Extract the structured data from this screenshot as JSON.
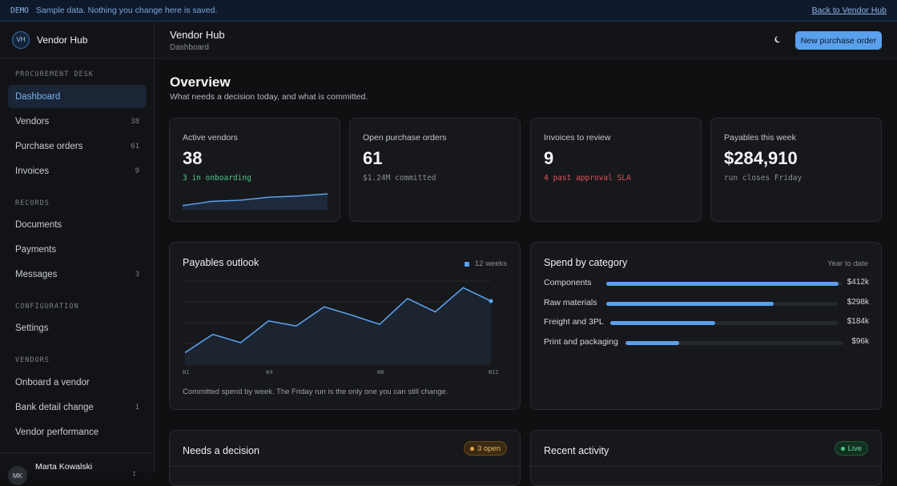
{
  "banner": {
    "tag": "DEMO",
    "message": "Sample data. Nothing you change here is saved.",
    "back_link": "Back to Vendor Hub"
  },
  "brand": {
    "initials": "VH",
    "name": "Vendor Hub"
  },
  "sidebar": {
    "sections": [
      {
        "label": "PROCUREMENT DESK",
        "items": [
          {
            "label": "Dashboard",
            "count": "",
            "active": true
          },
          {
            "label": "Vendors",
            "count": "38"
          },
          {
            "label": "Purchase orders",
            "count": "61"
          },
          {
            "label": "Invoices",
            "count": "9"
          }
        ]
      },
      {
        "label": "RECORDS",
        "items": [
          {
            "label": "Documents",
            "count": ""
          },
          {
            "label": "Payments",
            "count": ""
          },
          {
            "label": "Messages",
            "count": "3"
          }
        ]
      },
      {
        "label": "CONFIGURATION",
        "items": [
          {
            "label": "Settings",
            "count": ""
          }
        ]
      },
      {
        "label": "VENDORS",
        "items": [
          {
            "label": "Onboard a vendor",
            "count": ""
          },
          {
            "label": "Bank detail change",
            "count": "1"
          },
          {
            "label": "Vendor performance",
            "count": ""
          }
        ]
      }
    ],
    "user": {
      "initials": "MK",
      "name": "Marta Kowalski"
    }
  },
  "header": {
    "title": "Vendor Hub",
    "subtitle": "Dashboard",
    "theme_icon": "moon-icon",
    "primary_action": "New purchase order"
  },
  "overview": {
    "title": "Overview",
    "subtitle": "What needs a decision today, and what is committed."
  },
  "stats": [
    {
      "label": "Active vendors",
      "value": "38",
      "note": "3 in onboarding",
      "note_color": "#4fc98a",
      "sparkline": [
        1,
        2,
        2.3,
        3,
        3.3,
        3.8
      ]
    },
    {
      "label": "Open purchase orders",
      "value": "61",
      "note": "$1.24M committed",
      "note_color": "#8a8e96"
    },
    {
      "label": "Invoices to review",
      "value": "9",
      "note": "4 past approval SLA",
      "note_color": "#e0545a"
    },
    {
      "label": "Payables this week",
      "value": "$284,910",
      "note": "run closes Friday",
      "note_color": "#8a8e96"
    }
  ],
  "payables": {
    "title": "Payables outlook",
    "legend": "12 weeks",
    "caption": "Committed spend by week. The Friday run is the only one you can still change.",
    "chart_data": {
      "type": "area",
      "x": [
        "W1",
        "W2",
        "W3",
        "W4",
        "W5",
        "W6",
        "W7",
        "W8",
        "W9",
        "W10",
        "W11",
        "W12"
      ],
      "tick_labels": [
        "W1",
        "W4",
        "W8",
        "W12"
      ],
      "values": [
        1.4,
        3.6,
        2.6,
        5.2,
        4.6,
        6.9,
        5.9,
        4.8,
        7.9,
        6.3,
        9.2,
        7.6
      ],
      "ylim": [
        0,
        10
      ],
      "grid": true,
      "color": "#5aa0ec"
    }
  },
  "categories": {
    "title": "Spend by category",
    "period": "Year to date",
    "rows": [
      {
        "label": "Components",
        "value": "$412k",
        "fraction": 1.0
      },
      {
        "label": "Raw materials",
        "value": "$298k",
        "fraction": 0.72
      },
      {
        "label": "Freight and 3PL",
        "value": "$184k",
        "fraction": 0.45
      },
      {
        "label": "Print and packaging",
        "value": "$96k",
        "fraction": 0.23
      }
    ]
  },
  "decision": {
    "title": "Needs a decision",
    "badge": "3 open",
    "badge_color": "#e0a84a"
  },
  "activity": {
    "title": "Recent activity",
    "badge": "Live",
    "badge_color": "#4fc98a"
  }
}
